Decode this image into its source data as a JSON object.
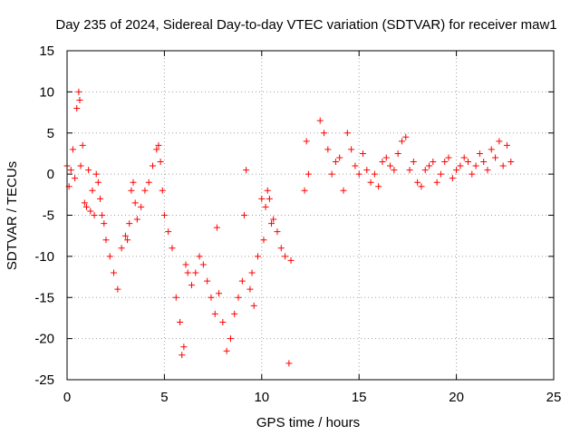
{
  "chart_data": {
    "type": "scatter",
    "title": "Day 235 of 2024, Sidereal Day-to-day VTEC variation (SDTVAR) for receiver maw1",
    "xlabel": "GPS time / hours",
    "ylabel": "SDTVAR / TECUs",
    "xlim": [
      0,
      25
    ],
    "ylim": [
      -25,
      15
    ],
    "xticks": [
      0,
      5,
      10,
      15,
      20,
      25
    ],
    "xtick_labels": [
      "0",
      "5",
      "10",
      "15",
      "20",
      "25"
    ],
    "yticks": [
      -25,
      -20,
      -15,
      -10,
      -5,
      0,
      5,
      10,
      15
    ],
    "ytick_labels": [
      "-25",
      "-20",
      "-15",
      "-10",
      "-5",
      "0",
      "5",
      "10",
      "15"
    ],
    "grid": true,
    "marker": "+",
    "marker_color": "#ff0000",
    "series": [
      {
        "name": "SDTVAR",
        "x": [
          0.0,
          0.1,
          0.2,
          0.3,
          0.4,
          0.5,
          0.6,
          0.65,
          0.7,
          0.8,
          0.9,
          1.0,
          1.1,
          1.2,
          1.3,
          1.4,
          1.5,
          1.6,
          1.7,
          1.8,
          1.9,
          2.0,
          2.2,
          2.4,
          2.6,
          2.8,
          3.0,
          3.1,
          3.2,
          3.3,
          3.4,
          3.5,
          3.6,
          3.8,
          4.0,
          4.2,
          4.4,
          4.6,
          4.7,
          4.8,
          4.9,
          5.0,
          5.2,
          5.4,
          5.6,
          5.8,
          5.9,
          6.0,
          6.1,
          6.2,
          6.4,
          6.6,
          6.8,
          7.0,
          7.2,
          7.4,
          7.6,
          7.7,
          7.8,
          8.0,
          8.2,
          8.4,
          8.6,
          8.8,
          9.0,
          9.1,
          9.2,
          9.4,
          9.5,
          9.6,
          9.8,
          10.0,
          10.1,
          10.2,
          10.3,
          10.4,
          10.5,
          10.6,
          10.8,
          11.0,
          11.2,
          11.4,
          11.5,
          12.2,
          12.3,
          12.4,
          13.0,
          13.2,
          13.4,
          13.6,
          13.8,
          14.0,
          14.2,
          14.4,
          14.6,
          14.8,
          15.0,
          15.2,
          15.4,
          15.6,
          15.8,
          16.0,
          16.2,
          16.4,
          16.6,
          16.8,
          17.0,
          17.2,
          17.4,
          17.6,
          17.8,
          18.0,
          18.2,
          18.4,
          18.6,
          18.8,
          19.0,
          19.2,
          19.4,
          19.6,
          19.8,
          20.0,
          20.2,
          20.4,
          20.6,
          20.8,
          21.0,
          21.2,
          21.4,
          21.6,
          21.8,
          22.0,
          22.2,
          22.4,
          22.6,
          22.8
        ],
        "y": [
          1.0,
          -1.5,
          0.5,
          3.0,
          -0.5,
          8.0,
          10.0,
          9.0,
          1.0,
          3.5,
          -3.5,
          -4.0,
          0.5,
          -4.5,
          -2.0,
          -5.0,
          0.0,
          -1.0,
          -3.0,
          -5.0,
          -6.0,
          -8.0,
          -10.0,
          -12.0,
          -14.0,
          -9.0,
          -7.5,
          -8.0,
          -6.0,
          -2.0,
          -1.0,
          -3.5,
          -5.5,
          -4.0,
          -2.0,
          -1.0,
          1.0,
          3.0,
          3.5,
          1.5,
          -2.0,
          -5.0,
          -7.0,
          -9.0,
          -15.0,
          -18.0,
          -22.0,
          -21.0,
          -11.0,
          -12.0,
          -13.5,
          -12.0,
          -10.0,
          -11.0,
          -13.0,
          -15.0,
          -17.0,
          -6.5,
          -14.5,
          -18.0,
          -21.5,
          -20.0,
          -17.0,
          -15.0,
          -13.0,
          -5.0,
          0.5,
          -14.0,
          -12.0,
          -16.0,
          -10.0,
          -3.0,
          -8.0,
          -4.0,
          -2.0,
          -3.0,
          -6.0,
          -5.5,
          -7.0,
          -9.0,
          -10.0,
          -23.0,
          -10.5,
          -2.0,
          4.0,
          0.0,
          6.5,
          5.0,
          3.0,
          0.0,
          1.5,
          2.0,
          -2.0,
          5.0,
          3.0,
          1.0,
          0.0,
          2.5,
          0.5,
          -1.0,
          0.0,
          -1.5,
          1.5,
          2.0,
          1.0,
          0.5,
          2.5,
          4.0,
          4.5,
          0.5,
          1.5,
          -1.0,
          -1.5,
          0.5,
          1.0,
          1.5,
          -1.0,
          0.0,
          1.5,
          2.0,
          -0.5,
          0.5,
          1.0,
          2.0,
          1.5,
          0.0,
          1.0,
          2.5,
          1.5,
          0.5,
          3.0,
          2.0,
          4.0,
          1.0,
          3.5,
          1.5
        ]
      }
    ]
  }
}
